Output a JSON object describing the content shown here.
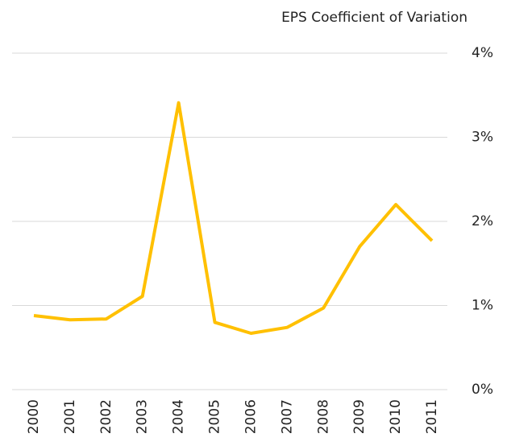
{
  "chart_data": {
    "type": "line",
    "title": "EPS Coefficient of Variation",
    "categories": [
      "2000",
      "2001",
      "2002",
      "2003",
      "2004",
      "2005",
      "2006",
      "2007",
      "2008",
      "2009",
      "2010",
      "2011"
    ],
    "series": [
      {
        "color": "#ffc000",
        "values": [
          0.88,
          0.83,
          0.84,
          1.11,
          3.41,
          0.8,
          0.67,
          0.74,
          0.97,
          1.7,
          2.2,
          1.77
        ]
      }
    ],
    "ylim": [
      0,
      4
    ],
    "yticks": [
      {
        "value": 0,
        "label": "0%"
      },
      {
        "value": 1,
        "label": "1%"
      },
      {
        "value": 2,
        "label": "2%"
      },
      {
        "value": 3,
        "label": "3%"
      },
      {
        "value": 4,
        "label": "4%"
      }
    ],
    "grid": true,
    "yaxis_side": "right"
  }
}
